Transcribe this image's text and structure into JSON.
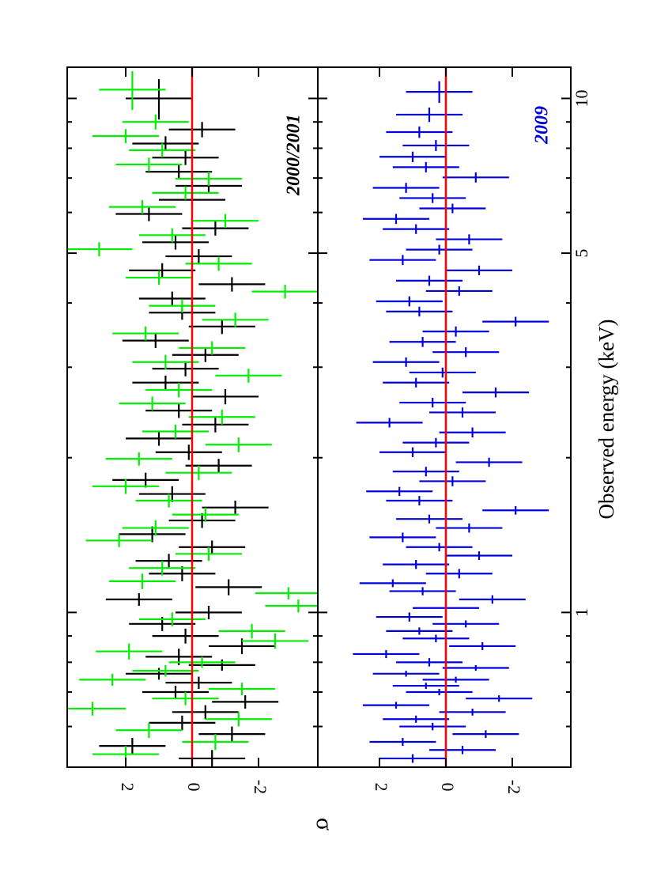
{
  "figure": {
    "ylabel": "σ",
    "xlabel": "Observed energy (keV)",
    "orientation": "rotated 90 degrees clockwise"
  },
  "chart_data": [
    {
      "type": "scatter",
      "panel": "top",
      "title": "2000/2001",
      "x_scale": "log",
      "xlim": [
        0.5,
        11.5
      ],
      "ylim": [
        -3.8,
        3.6
      ],
      "x_ticks_major": [
        1,
        5,
        10
      ],
      "x_ticks_minor": [
        0.6,
        0.7,
        0.8,
        0.9,
        2,
        3,
        4,
        6,
        7,
        8,
        9
      ],
      "y_ticks": [
        2,
        0,
        -2
      ],
      "y_tick_labels": [
        "2",
        "0",
        "-2"
      ],
      "reference_line": {
        "y": 0,
        "color": "#ff0000"
      },
      "series": [
        {
          "name": "black",
          "color": "#000000",
          "x": [
            0.52,
            0.55,
            0.58,
            0.61,
            0.64,
            0.67,
            0.7,
            0.73,
            0.76,
            0.79,
            0.82,
            0.86,
            0.9,
            0.95,
            1.0,
            1.06,
            1.12,
            1.19,
            1.26,
            1.34,
            1.42,
            1.51,
            1.6,
            1.7,
            1.81,
            1.93,
            2.05,
            2.18,
            2.32,
            2.47,
            2.63,
            2.8,
            2.98,
            3.17,
            3.38,
            3.6,
            3.83,
            4.08,
            4.35,
            4.63,
            4.93,
            5.25,
            5.59,
            5.96,
            6.35,
            6.76,
            7.2,
            7.67,
            8.17,
            8.7,
            10.0
          ],
          "y": [
            -0.6,
            1.8,
            -1.2,
            0.3,
            -0.4,
            -1.6,
            0.5,
            -0.2,
            1.0,
            -0.9,
            0.4,
            -1.5,
            0.2,
            0.9,
            -0.5,
            1.6,
            -1.1,
            0.3,
            0.7,
            -0.6,
            1.2,
            -0.3,
            -1.3,
            0.6,
            1.4,
            -0.8,
            0.1,
            1.0,
            -0.7,
            0.4,
            -1.0,
            0.8,
            0.2,
            -0.4,
            1.1,
            -0.9,
            0.3,
            0.6,
            -1.2,
            0.9,
            -0.2,
            0.5,
            -0.7,
            1.3,
            0.0,
            -0.5,
            0.4,
            0.2,
            0.8,
            -0.3,
            1.0
          ],
          "xerr": [
            0.02,
            0.02,
            0.02,
            0.02,
            0.02,
            0.02,
            0.02,
            0.02,
            0.02,
            0.02,
            0.03,
            0.03,
            0.03,
            0.03,
            0.03,
            0.03,
            0.04,
            0.04,
            0.04,
            0.04,
            0.05,
            0.05,
            0.05,
            0.06,
            0.06,
            0.06,
            0.07,
            0.07,
            0.08,
            0.08,
            0.09,
            0.09,
            0.1,
            0.1,
            0.11,
            0.12,
            0.12,
            0.13,
            0.14,
            0.15,
            0.16,
            0.17,
            0.18,
            0.19,
            0.2,
            0.22,
            0.23,
            0.25,
            0.27,
            0.3,
            0.9
          ],
          "yerr": 1.0
        },
        {
          "name": "green",
          "color": "#00ee00",
          "x": [
            0.53,
            0.56,
            0.59,
            0.62,
            0.65,
            0.68,
            0.71,
            0.74,
            0.77,
            0.8,
            0.84,
            0.88,
            0.92,
            0.97,
            1.03,
            1.09,
            1.15,
            1.22,
            1.3,
            1.38,
            1.46,
            1.55,
            1.65,
            1.76,
            1.87,
            1.99,
            2.12,
            2.25,
            2.4,
            2.55,
            2.71,
            2.89,
            3.07,
            3.27,
            3.49,
            3.71,
            3.95,
            4.21,
            4.48,
            4.77,
            5.09,
            5.42,
            5.78,
            6.15,
            6.55,
            6.98,
            7.44,
            7.93,
            8.45,
            9.0,
            10.4
          ],
          "y": [
            2.0,
            -0.7,
            1.3,
            -1.4,
            3.0,
            0.2,
            -1.5,
            2.4,
            0.8,
            -0.3,
            1.9,
            -2.5,
            -1.8,
            0.6,
            -3.2,
            -2.9,
            1.5,
            0.9,
            -0.5,
            2.2,
            1.1,
            -0.4,
            0.7,
            2.0,
            -0.2,
            1.6,
            -1.4,
            0.5,
            -0.9,
            1.2,
            0.4,
            -1.7,
            0.8,
            -0.6,
            1.4,
            -1.3,
            0.3,
            -2.8,
            1.0,
            -0.8,
            2.8,
            0.6,
            -1.0,
            1.5,
            0.2,
            -0.5,
            1.3,
            0.9,
            2.0,
            1.1,
            1.8
          ],
          "xerr": [
            0.02,
            0.02,
            0.02,
            0.02,
            0.02,
            0.02,
            0.02,
            0.02,
            0.02,
            0.02,
            0.03,
            0.03,
            0.03,
            0.03,
            0.03,
            0.03,
            0.04,
            0.04,
            0.04,
            0.04,
            0.05,
            0.05,
            0.05,
            0.06,
            0.06,
            0.06,
            0.07,
            0.07,
            0.08,
            0.08,
            0.09,
            0.09,
            0.1,
            0.1,
            0.11,
            0.12,
            0.12,
            0.13,
            0.14,
            0.15,
            0.16,
            0.17,
            0.18,
            0.19,
            0.2,
            0.22,
            0.23,
            0.25,
            0.27,
            0.3,
            0.9
          ],
          "yerr": 1.0
        }
      ]
    },
    {
      "type": "scatter",
      "panel": "bottom",
      "title": "2009",
      "x_scale": "log",
      "xlim": [
        0.5,
        11.5
      ],
      "ylim": [
        -3.8,
        3.6
      ],
      "x_ticks_major": [
        1,
        5,
        10
      ],
      "x_tick_labels": [
        "1",
        "5",
        "10"
      ],
      "x_ticks_minor": [
        0.6,
        0.7,
        0.8,
        0.9,
        2,
        3,
        4,
        6,
        7,
        8,
        9
      ],
      "y_ticks": [
        2,
        0,
        -2
      ],
      "y_tick_labels": [
        "2",
        "0",
        "-2"
      ],
      "reference_line": {
        "y": 0,
        "color": "#ff0000"
      },
      "series": [
        {
          "name": "blue",
          "color": "#0000dd",
          "x": [
            0.52,
            0.54,
            0.56,
            0.58,
            0.6,
            0.62,
            0.64,
            0.66,
            0.68,
            0.7,
            0.72,
            0.74,
            0.76,
            0.78,
            0.8,
            0.83,
            0.86,
            0.89,
            0.92,
            0.95,
            0.98,
            1.02,
            1.06,
            1.1,
            1.14,
            1.19,
            1.24,
            1.29,
            1.34,
            1.4,
            1.46,
            1.52,
            1.58,
            1.65,
            1.72,
            1.8,
            1.88,
            1.96,
            2.05,
            2.14,
            2.24,
            2.34,
            2.45,
            2.56,
            2.68,
            2.8,
            2.93,
            3.07,
            3.21,
            3.36,
            3.52,
            3.68,
            3.85,
            4.03,
            4.22,
            4.42,
            4.63,
            4.85,
            5.08,
            5.32,
            5.57,
            5.83,
            6.11,
            6.4,
            6.7,
            7.02,
            7.35,
            7.7,
            8.1,
            8.6,
            9.3,
            10.3
          ],
          "y": [
            1.0,
            -0.5,
            1.3,
            -1.2,
            0.4,
            0.9,
            -0.8,
            1.5,
            -1.6,
            0.2,
            0.6,
            -0.3,
            1.2,
            -0.9,
            0.5,
            1.8,
            -1.1,
            0.3,
            0.8,
            -0.6,
            1.1,
            0.0,
            -1.4,
            0.7,
            1.6,
            -0.4,
            0.9,
            -1.0,
            0.2,
            1.3,
            -0.7,
            0.5,
            -2.1,
            0.8,
            1.4,
            -0.2,
            0.6,
            -1.3,
            1.0,
            0.3,
            -0.8,
            1.7,
            -0.5,
            0.4,
            -1.5,
            0.9,
            0.1,
            1.2,
            -0.6,
            0.7,
            -0.3,
            -2.1,
            0.8,
            1.1,
            -0.4,
            0.5,
            -1.0,
            1.3,
            0.2,
            -0.7,
            0.9,
            1.5,
            -0.2,
            0.4,
            1.2,
            -0.9,
            0.6,
            1.0,
            0.3,
            0.8,
            0.5,
            0.2
          ],
          "xerr": [
            0.01,
            0.01,
            0.01,
            0.01,
            0.01,
            0.01,
            0.01,
            0.01,
            0.01,
            0.01,
            0.01,
            0.01,
            0.01,
            0.01,
            0.015,
            0.015,
            0.015,
            0.015,
            0.015,
            0.015,
            0.02,
            0.02,
            0.02,
            0.02,
            0.02,
            0.025,
            0.025,
            0.025,
            0.025,
            0.03,
            0.03,
            0.03,
            0.03,
            0.035,
            0.035,
            0.04,
            0.04,
            0.04,
            0.045,
            0.045,
            0.05,
            0.05,
            0.055,
            0.055,
            0.06,
            0.06,
            0.065,
            0.065,
            0.07,
            0.075,
            0.08,
            0.08,
            0.085,
            0.09,
            0.09,
            0.1,
            0.1,
            0.11,
            0.11,
            0.12,
            0.12,
            0.13,
            0.13,
            0.14,
            0.15,
            0.16,
            0.17,
            0.18,
            0.2,
            0.22,
            0.3,
            0.5
          ],
          "yerr": 1.0
        }
      ]
    }
  ]
}
